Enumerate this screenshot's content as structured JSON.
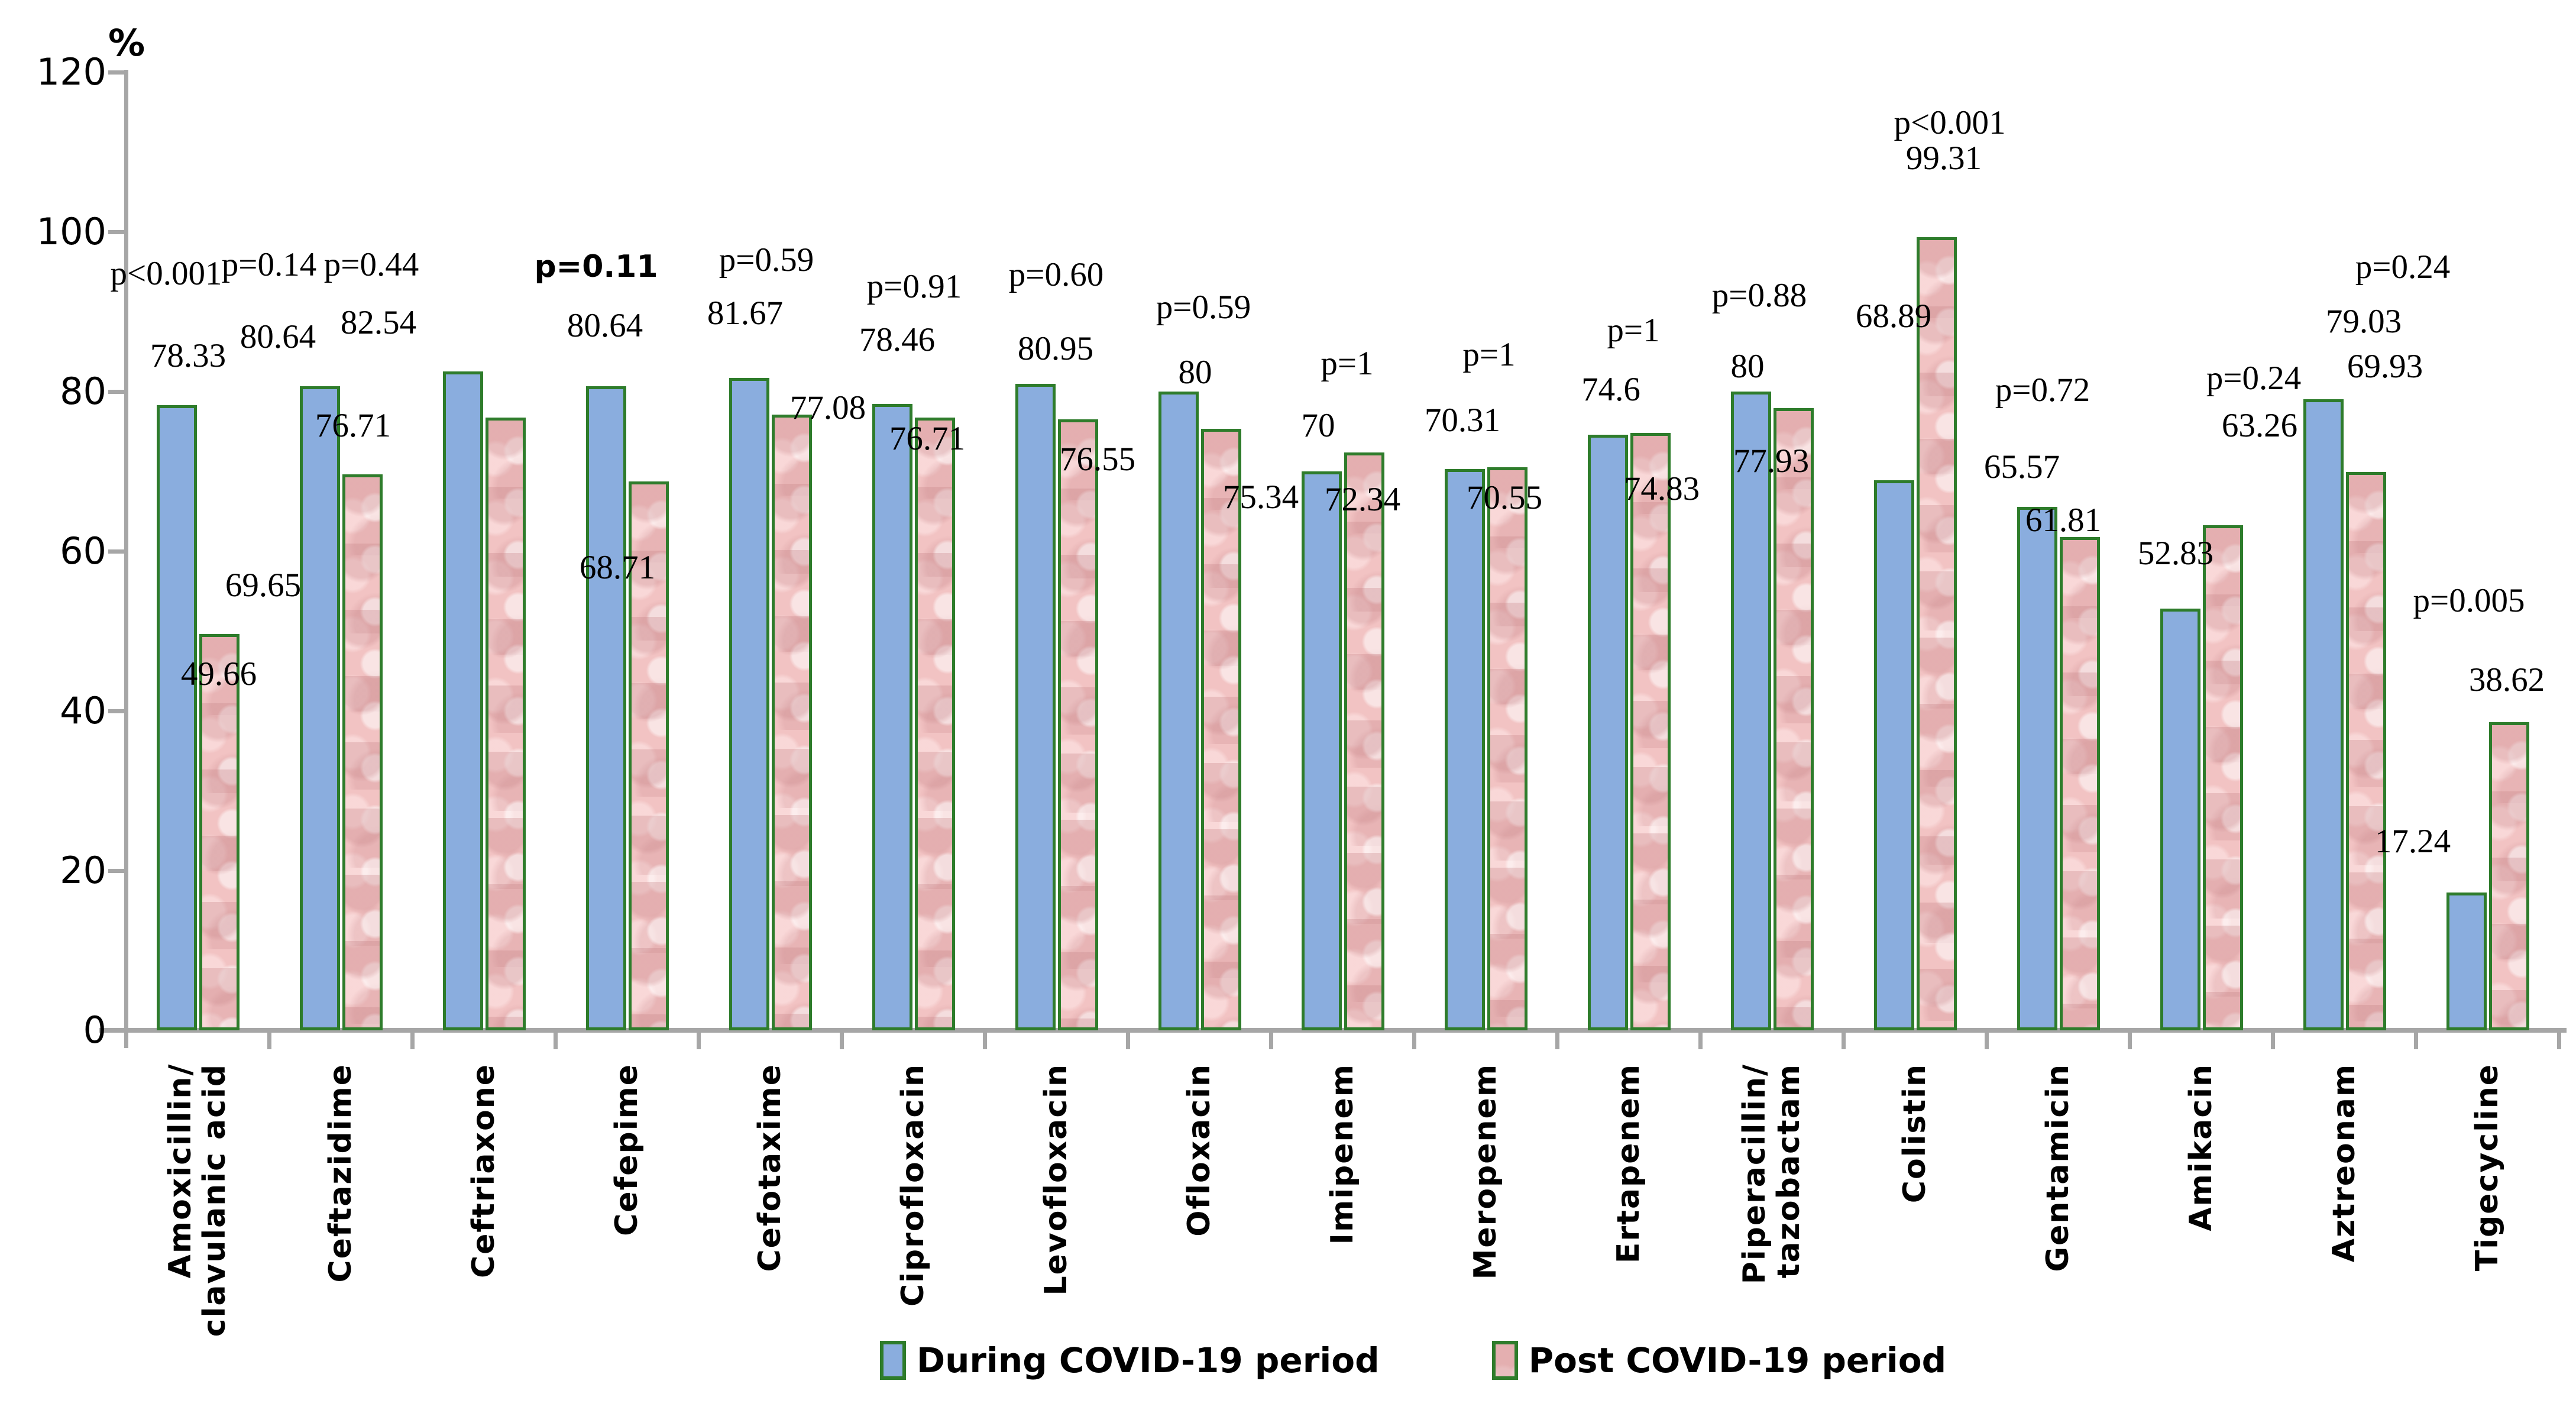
{
  "chart_data": {
    "type": "bar",
    "title": "",
    "xlabel": "",
    "ylabel": "%",
    "ylim": [
      0,
      120
    ],
    "yticks": [
      0,
      20,
      40,
      60,
      80,
      100,
      120
    ],
    "grid": false,
    "legend_position": "bottom-center",
    "bar_border_color": "#2e7c2b",
    "axis_color": "#a6a6a6",
    "categories": [
      "Amoxicillin/\nclavulanic acid",
      "Ceftazidime",
      "Ceftriaxone",
      "Cefepime",
      "Cefotaxime",
      "Ciprofloxacin",
      "Levofloxacin",
      "Ofloxacin",
      "Imipenem",
      "Meropenem",
      "Ertapenem",
      "Piperacillin/\ntazobactam",
      "Colistin",
      "Gentamicin",
      "Amikacin",
      "Aztreonam",
      "Tigecycline"
    ],
    "series": [
      {
        "name": "During COVID-19 period",
        "color": "#8aadde",
        "values": [
          78.33,
          80.64,
          82.54,
          80.64,
          81.67,
          78.46,
          80.95,
          80,
          70,
          70.31,
          74.6,
          80,
          68.89,
          65.57,
          52.83,
          79.03,
          17.24
        ],
        "value_labels": [
          "78.33",
          "80.64",
          "82.54",
          "80.64",
          "81.67",
          "78.46",
          "80.95",
          "80",
          "70",
          "70.31",
          "74.6",
          "80",
          "68.89",
          "65.57",
          "52.83",
          "79.03",
          "17.24"
        ]
      },
      {
        "name": "Post COVID-19 period",
        "color": "#f2c3c3",
        "values": [
          49.66,
          69.65,
          76.71,
          68.71,
          77.08,
          76.71,
          76.55,
          75.34,
          72.34,
          70.55,
          74.83,
          77.93,
          99.31,
          61.81,
          63.26,
          69.93,
          38.62
        ],
        "value_labels": [
          "49.66",
          "69.65",
          "76.71",
          "68.71",
          "77.08",
          "76.71",
          "76.55",
          "75.34",
          "72.34",
          "70.55",
          "74.83",
          "77.93",
          "99.31",
          "61.81",
          "63.26",
          "69.93",
          "38.62"
        ]
      }
    ],
    "p_values": [
      {
        "label": "p<0.001",
        "bold": false
      },
      {
        "label": "p=0.14",
        "bold": false
      },
      {
        "label": "p=0.44",
        "bold": false
      },
      {
        "label": "p=0.11",
        "bold": true
      },
      {
        "label": "p=0.59",
        "bold": false
      },
      {
        "label": "p=0.91",
        "bold": false
      },
      {
        "label": "p=0.60",
        "bold": false
      },
      {
        "label": "p=0.59",
        "bold": false
      },
      {
        "label": "p=1",
        "bold": false
      },
      {
        "label": "p=1",
        "bold": false
      },
      {
        "label": "p=1",
        "bold": false
      },
      {
        "label": "p=0.88",
        "bold": false
      },
      {
        "label": "p<0.001",
        "bold": false
      },
      {
        "label": "p=0.72",
        "bold": false
      },
      {
        "label": "p=0.24",
        "bold": false
      },
      {
        "label": "p=0.24",
        "bold": false
      },
      {
        "label": "p=0.005",
        "bold": false
      }
    ]
  }
}
